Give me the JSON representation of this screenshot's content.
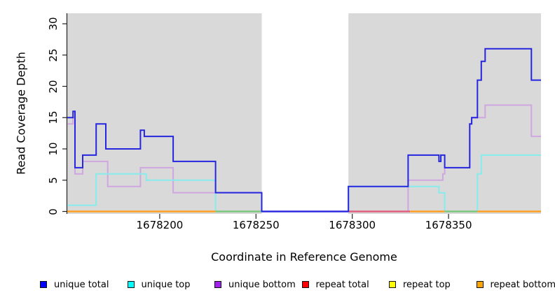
{
  "chart_data": {
    "type": "line",
    "subtype": "step-coverage",
    "title": "",
    "xlabel": "Coordinate in Reference Genome",
    "ylabel": "Read Coverage Depth",
    "xlim": [
      1678152,
      1678398
    ],
    "ylim": [
      0,
      30
    ],
    "x_ticks": [
      1678200,
      1678250,
      1678300,
      1678350
    ],
    "y_ticks": [
      0,
      5,
      10,
      15,
      20,
      25,
      30
    ],
    "grid": false,
    "legend_position": "bottom",
    "plot_bg_color": "#D9D9D9",
    "page_bg_color": "#FFFFFF",
    "axis_color": "#222222",
    "gap_region": {
      "x_start": 1678253,
      "x_end": 1678298,
      "color": "#FFFFFF"
    },
    "series": [
      {
        "name": "unique bottom",
        "line_color": "#CFA6E0",
        "x_end": 1678398,
        "steps": [
          [
            1678152,
            14
          ],
          [
            1678155,
            15
          ],
          [
            1678156,
            6
          ],
          [
            1678160,
            8
          ],
          [
            1678173,
            4
          ],
          [
            1678190,
            7
          ],
          [
            1678207,
            3
          ],
          [
            1678253,
            0
          ],
          [
            1678329,
            5
          ],
          [
            1678347,
            6
          ],
          [
            1678348,
            7
          ],
          [
            1678361,
            14
          ],
          [
            1678362,
            15
          ],
          [
            1678369,
            17
          ],
          [
            1678393,
            12
          ]
        ]
      },
      {
        "name": "unique top",
        "line_color": "#86ECEC",
        "x_end": 1678398,
        "steps": [
          [
            1678152,
            1
          ],
          [
            1678167,
            6
          ],
          [
            1678193,
            5
          ],
          [
            1678229,
            0
          ],
          [
            1678298,
            4
          ],
          [
            1678345,
            3
          ],
          [
            1678348,
            0
          ],
          [
            1678365,
            6
          ],
          [
            1678367,
            9
          ]
        ]
      },
      {
        "name": "unique total",
        "line_color": "#2626DF",
        "x_end": 1678398,
        "steps": [
          [
            1678152,
            15
          ],
          [
            1678155,
            16
          ],
          [
            1678156,
            7
          ],
          [
            1678160,
            9
          ],
          [
            1678167,
            14
          ],
          [
            1678172,
            10
          ],
          [
            1678190,
            13
          ],
          [
            1678192,
            12
          ],
          [
            1678207,
            8
          ],
          [
            1678229,
            3
          ],
          [
            1678253,
            0
          ],
          [
            1678298,
            4
          ],
          [
            1678329,
            9
          ],
          [
            1678345,
            8
          ],
          [
            1678346,
            9
          ],
          [
            1678348,
            7
          ],
          [
            1678361,
            14
          ],
          [
            1678362,
            15
          ],
          [
            1678365,
            21
          ],
          [
            1678367,
            24
          ],
          [
            1678369,
            26
          ],
          [
            1678393,
            21
          ]
        ]
      }
    ],
    "zero_line_segments": [
      {
        "name": "repeat bottom",
        "x_start": 1678152,
        "x_end": 1678229,
        "color": "#FFA021"
      },
      {
        "name": "repeat top",
        "x_start": 1678229,
        "x_end": 1678253,
        "color": "#7CC87F"
      },
      {
        "name": "gap baseline",
        "x_start": 1678253,
        "x_end": 1678298,
        "color": "#5847E6"
      },
      {
        "name": "repeat total",
        "x_start": 1678298,
        "x_end": 1678330,
        "color": "#E0607F"
      },
      {
        "name": "repeat bottom",
        "x_start": 1678330,
        "x_end": 1678348,
        "color": "#FFA021"
      },
      {
        "name": "repeat top",
        "x_start": 1678348,
        "x_end": 1678365,
        "color": "#7CC87F"
      },
      {
        "name": "repeat bottom",
        "x_start": 1678365,
        "x_end": 1678398,
        "color": "#FFA021"
      }
    ]
  },
  "legend": {
    "items": [
      {
        "label": "unique total",
        "color": "#0000FF"
      },
      {
        "label": "unique top",
        "color": "#00FFFF"
      },
      {
        "label": "unique bottom",
        "color": "#A020F0"
      },
      {
        "label": "repeat total",
        "color": "#FF0000"
      },
      {
        "label": "repeat top",
        "color": "#FFFF00"
      },
      {
        "label": "repeat bottom",
        "color": "#FFA500"
      }
    ]
  }
}
